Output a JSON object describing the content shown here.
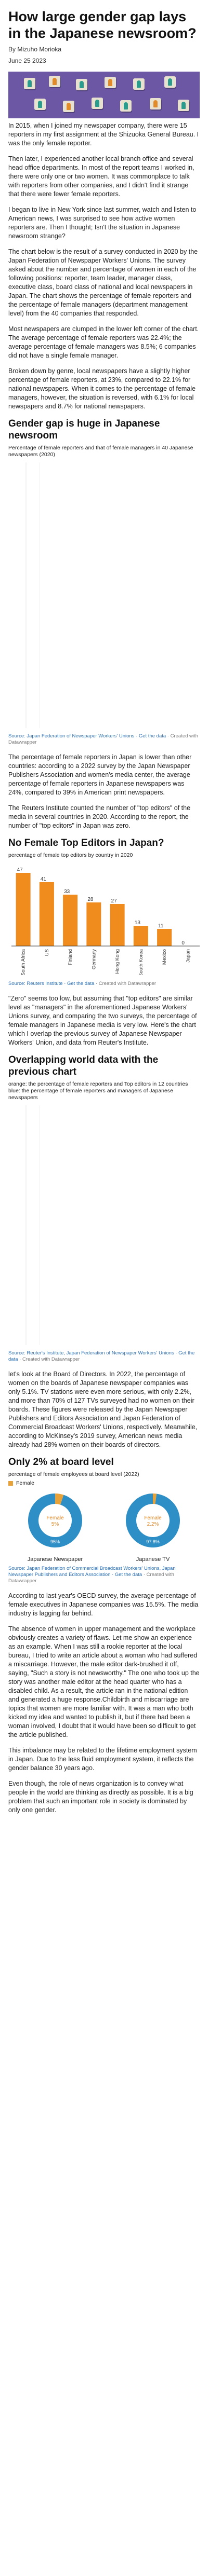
{
  "article": {
    "title": "How large gender gap lays in the Japanese newsroom?",
    "byline": "By Mizuho Morioka",
    "date": "June 25 2023"
  },
  "paragraphs": {
    "p1": "In 2015, when I joined my newspaper company, there were 15 reporters in my first assignment at the Shizuoka General Bureau. I was the only female reporter.",
    "p2": "Then later, I experienced another local branch office and several head office departments. In most of the report teams I worked in, there were only one or two women. It was commonplace to talk with reporters from other companies, and I didn't find it strange that there were fewer female reporters.",
    "p3": "I began to live in New York since last summer, watch and listen to American news, I was surprised to see how active women reporters are. Then I thought; Isn't the situation in Japanese newsroom strange?",
    "p4": "The chart below is the result of a survey conducted in 2020 by the Japan Federation of Newspaper Workers' Unions. The survey asked about the number and percentage of women in each of the following positions: reporter, team leader, manager class, executive class, board class of national and local newspapers in Japan. The chart shows the percentage of female reporters and the percentage of female managers (department management level) from the 40 companies that responded.",
    "p5": "Most newspapers are clumped in the lower left corner of the chart. The average percentage of female reporters was 22.4%; the average percentage of female managers was 8.5%; 6 companies did not have a single female manager.",
    "p6": "Broken down by genre, local newspapers have a slightly higher percentage of female reporters, at 23%, compared to 22.1% for national newspapers. When it comes to the percentage of female managers, however, the situation is reversed, with 6.1% for local newspapers and 8.7% for national newspapers.",
    "p7": "The percentage of female reporters in Japan is lower than other countries: according to a 2022 survey by the Japan Newspaper Publishers Association and women's media center, the average percentage of female reporters in Japanese newspapers was 24%, compared to 39% in American print newspapers.",
    "p8": "The Reuters Institute counted the number of \"top editors\" of the media in several countries in 2020. According to the report, the number of \"top editors\" in Japan was zero.",
    "p9": "\"Zero\" seems too low, but assuming that \"top editors\" are similar level as \"managers\" in the aforementioned Japanese Workers' Unions survey, and comparing the two surveys, the percentage of female managers in Japanese media is very low. Here's the chart which I overlap the previous survey of Japanese Newspaper Workers' Union, and data from Reuter's Institute.",
    "p10": "let's look at the Board of Directors. In 2022, the percentage of women on the boards of Japanese newspaper companies was only 5.1%. TV stations were even more serious, with only 2.2%, and more than 70% of 127 TVs surveyed had no women on their boards. These figures were released by the Japan Newspaper Publishers and Editors Association and Japan Federation of Commercial Broadcast Workers' Unions, respectively. Meanwhile, according to McKinsey's 2019 survey, American news media already had 28% women on their boards of directors.",
    "p11": "According to last year's OECD survey, the average percentage of female executives in Japanese companies was 15.5%. The media industry is lagging far behind.",
    "p12": "The absence of women in upper management and the workplace obviously creates a variety of flaws. Let me show an experience as an example. When I was still a rookie reporter at the local bureau, I tried to write an article about a woman who had suffered a miscarriage. However, the male editor dark-brushed it off, saying, \"Such a story is not newsworthy.\" The one who took up the story was another male editor at the head quarter who has a disabled child. As a result, the article ran in the national edition and generated a huge response.Childbirth and miscarriage are topics that women are more familiar with. It was a man who both kicked my idea and wanted to publish it, but if there had been a woman involved, I doubt that it would have been so difficult to get the article published.",
    "p13": "This imbalance may be related to the lifetime employment system in Japan. Due to the less fluid employment system, it reflects the gender balance 30 years ago.",
    "p14": "Even though, the role of news organization is to convey what people in the world are thinking as directly as possible. It is a big problem that such an important role in society is dominated by only one gender."
  },
  "section1": {
    "heading": "Gender gap is huge in Japanese newsroom",
    "subtitle": "Percentage of female reporters and that of female managers in 40 Japanese newspapers (2020)",
    "source_link": "Source: Japan Federation of Newspaper Workers' Unions · Get the data",
    "source_plain": " · Created with Datawrapper"
  },
  "section2": {
    "heading": "No Female Top Editors in Japan?",
    "subtitle": "percentage of female top editors by country in 2020",
    "source_link": "Source: Reuters Institute · Get the data",
    "source_plain": " · Created with Datawrapper"
  },
  "section3": {
    "heading": "Overlapping world data with the previous chart",
    "subtitle": "orange: the percentage of female reporters and Top editors in 12 countries  blue: the percentage of female reporters and managers of Japanese newspapers",
    "source_link": "Source: Reuter's Institute, Japan Federation of Newspaper Workers' Unions · Get the data",
    "source_plain": " · Created with Datawrapper"
  },
  "section4": {
    "heading": "Only 2% at board level",
    "subtitle": "percentage of female employees at board level (2022)",
    "legend": "Female",
    "source_link": "Source: Japan Federation of Commercial Broadcast Workers' Unions, Japan Newspaper Publishers and Editors Association · Get the data",
    "source_plain": " · Created with Datawrapper"
  },
  "chart_data": [
    {
      "type": "bar",
      "categories": [
        "South Africa",
        "US",
        "Finland",
        "Germany",
        "Hong Kong",
        "South Korea",
        "Mexico",
        "Japan"
      ],
      "values": [
        47,
        41,
        33,
        28,
        27,
        13,
        11,
        0
      ],
      "title": "No Female Top Editors in Japan?",
      "color": "#f08c1e"
    },
    {
      "type": "pie",
      "name": "Japanese Newspaper",
      "center_label": "Female 5%",
      "slices": [
        {
          "label": "Female",
          "value": 5.1
        },
        {
          "label": "",
          "value": 94.9
        }
      ],
      "value_label": "95%",
      "colors": [
        "#e8a23a",
        "#2e8ec6"
      ]
    },
    {
      "type": "pie",
      "name": "Japanese TV",
      "center_label": "Female 2.2%",
      "slices": [
        {
          "label": "Female",
          "value": 2.2
        },
        {
          "label": "",
          "value": 97.8
        }
      ],
      "value_label": "97.8%",
      "colors": [
        "#e8a23a",
        "#2e8ec6"
      ]
    }
  ]
}
